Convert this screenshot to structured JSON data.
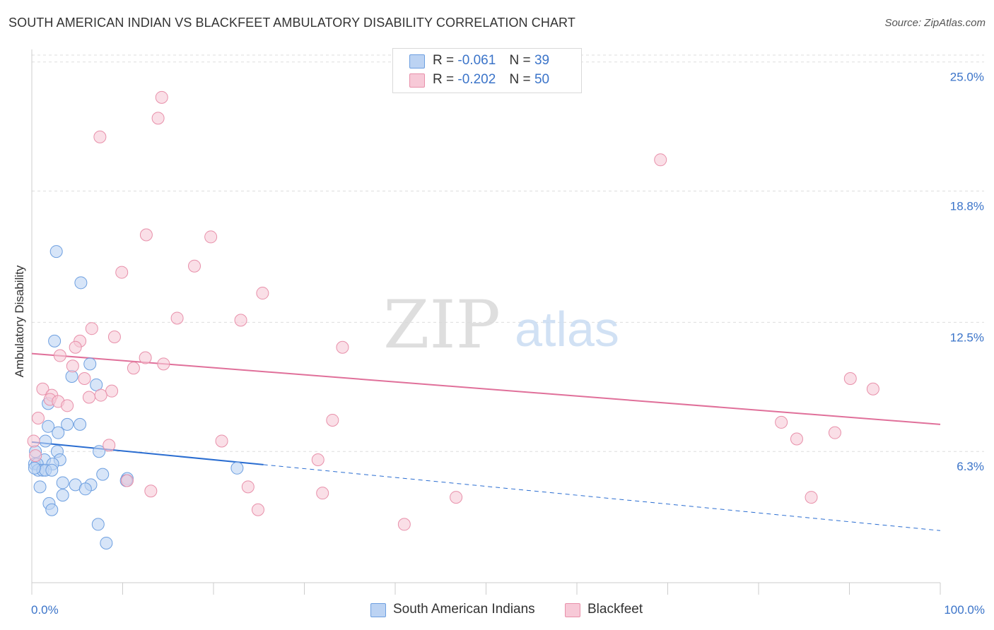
{
  "header": {
    "title": "SOUTH AMERICAN INDIAN VS BLACKFEET AMBULATORY DISABILITY CORRELATION CHART",
    "source": "Source: ZipAtlas.com"
  },
  "watermark": {
    "part1": "ZIP",
    "part2": "atlas"
  },
  "colors": {
    "blue": "#6d9fe0",
    "blue_fill": "#bcd3f3",
    "blue_line": "#2a6dd1",
    "pink": "#e890aa",
    "pink_fill": "#f7c9d7",
    "pink_line": "#e0709a",
    "axis_text": "#3b74c9",
    "grid": "#dddddd"
  },
  "legend": {
    "rows": [
      {
        "r_label": "R =",
        "r_value": "-0.061",
        "n_label": "N =",
        "n_value": "39"
      },
      {
        "r_label": "R =",
        "r_value": "-0.202",
        "n_label": "N =",
        "n_value": "50"
      }
    ]
  },
  "bottom_legend": {
    "items": [
      {
        "label": "South American Indians"
      },
      {
        "label": "Blackfeet"
      }
    ]
  },
  "chart_data": {
    "type": "scatter",
    "title": "SOUTH AMERICAN INDIAN VS BLACKFEET AMBULATORY DISABILITY CORRELATION CHART",
    "xlabel": "",
    "ylabel": "Ambulatory Disability",
    "xlim": [
      0,
      100
    ],
    "ylim": [
      0,
      25.6
    ],
    "x_tick_labels": [
      "0.0%",
      "100.0%"
    ],
    "y_ticks": [
      6.3,
      12.5,
      18.8,
      25.0
    ],
    "y_tick_labels": [
      "6.3%",
      "12.5%",
      "18.8%",
      "25.0%"
    ],
    "grid": true,
    "legend_position": "top-center",
    "series": [
      {
        "name": "South American Indians",
        "color": "blue",
        "points": [
          [
            2.7,
            15.9
          ],
          [
            5.4,
            14.4
          ],
          [
            2.5,
            11.6
          ],
          [
            6.4,
            10.5
          ],
          [
            4.4,
            9.9
          ],
          [
            7.1,
            9.5
          ],
          [
            1.8,
            8.6
          ],
          [
            1.8,
            7.5
          ],
          [
            3.9,
            7.6
          ],
          [
            5.3,
            7.6
          ],
          [
            2.9,
            7.2
          ],
          [
            1.5,
            6.8
          ],
          [
            0.4,
            6.3
          ],
          [
            2.8,
            6.3
          ],
          [
            7.4,
            6.3
          ],
          [
            1.4,
            5.9
          ],
          [
            3.1,
            5.9
          ],
          [
            0.3,
            5.7
          ],
          [
            0.6,
            5.7
          ],
          [
            2.3,
            5.7
          ],
          [
            0.7,
            5.4
          ],
          [
            1.2,
            5.4
          ],
          [
            1.5,
            5.4
          ],
          [
            2.2,
            5.4
          ],
          [
            22.6,
            5.5
          ],
          [
            0.3,
            5.5
          ],
          [
            7.8,
            5.2
          ],
          [
            10.5,
            5.0
          ],
          [
            3.4,
            4.8
          ],
          [
            4.8,
            4.7
          ],
          [
            6.5,
            4.7
          ],
          [
            0.9,
            4.6
          ],
          [
            5.9,
            4.5
          ],
          [
            3.4,
            4.2
          ],
          [
            1.9,
            3.8
          ],
          [
            2.2,
            3.5
          ],
          [
            7.3,
            2.8
          ],
          [
            8.2,
            1.9
          ],
          [
            10.4,
            4.9
          ]
        ],
        "trend": {
          "x_start": 0,
          "y_start": 6.75,
          "x_solid_end": 25.5,
          "x_end": 100,
          "y_end": 2.5
        }
      },
      {
        "name": "Blackfeet",
        "color": "pink",
        "points": [
          [
            14.3,
            23.3
          ],
          [
            13.9,
            22.3
          ],
          [
            7.5,
            21.4
          ],
          [
            69.2,
            20.3
          ],
          [
            12.6,
            16.7
          ],
          [
            19.7,
            16.6
          ],
          [
            17.9,
            15.2
          ],
          [
            9.9,
            14.9
          ],
          [
            25.4,
            13.9
          ],
          [
            16.0,
            12.7
          ],
          [
            23.0,
            12.6
          ],
          [
            6.6,
            12.2
          ],
          [
            9.1,
            11.8
          ],
          [
            5.3,
            11.6
          ],
          [
            34.2,
            11.3
          ],
          [
            4.8,
            11.3
          ],
          [
            3.1,
            10.9
          ],
          [
            12.5,
            10.8
          ],
          [
            14.5,
            10.5
          ],
          [
            4.5,
            10.4
          ],
          [
            11.2,
            10.3
          ],
          [
            5.8,
            9.8
          ],
          [
            90.1,
            9.8
          ],
          [
            1.2,
            9.3
          ],
          [
            92.6,
            9.3
          ],
          [
            8.8,
            9.2
          ],
          [
            2.2,
            9.0
          ],
          [
            7.6,
            9.0
          ],
          [
            6.3,
            8.9
          ],
          [
            2.0,
            8.8
          ],
          [
            2.9,
            8.7
          ],
          [
            3.9,
            8.5
          ],
          [
            0.7,
            7.9
          ],
          [
            33.1,
            7.8
          ],
          [
            82.5,
            7.7
          ],
          [
            88.4,
            7.2
          ],
          [
            0.2,
            6.8
          ],
          [
            84.2,
            6.9
          ],
          [
            20.9,
            6.8
          ],
          [
            8.5,
            6.6
          ],
          [
            31.5,
            5.9
          ],
          [
            10.5,
            4.9
          ],
          [
            23.8,
            4.6
          ],
          [
            13.1,
            4.4
          ],
          [
            32.0,
            4.3
          ],
          [
            46.7,
            4.1
          ],
          [
            85.8,
            4.1
          ],
          [
            24.9,
            3.5
          ],
          [
            41.0,
            2.8
          ],
          [
            0.4,
            6.1
          ]
        ],
        "trend": {
          "x_start": 0,
          "y_start": 11.0,
          "x_end": 100,
          "y_end": 7.6
        }
      }
    ]
  }
}
